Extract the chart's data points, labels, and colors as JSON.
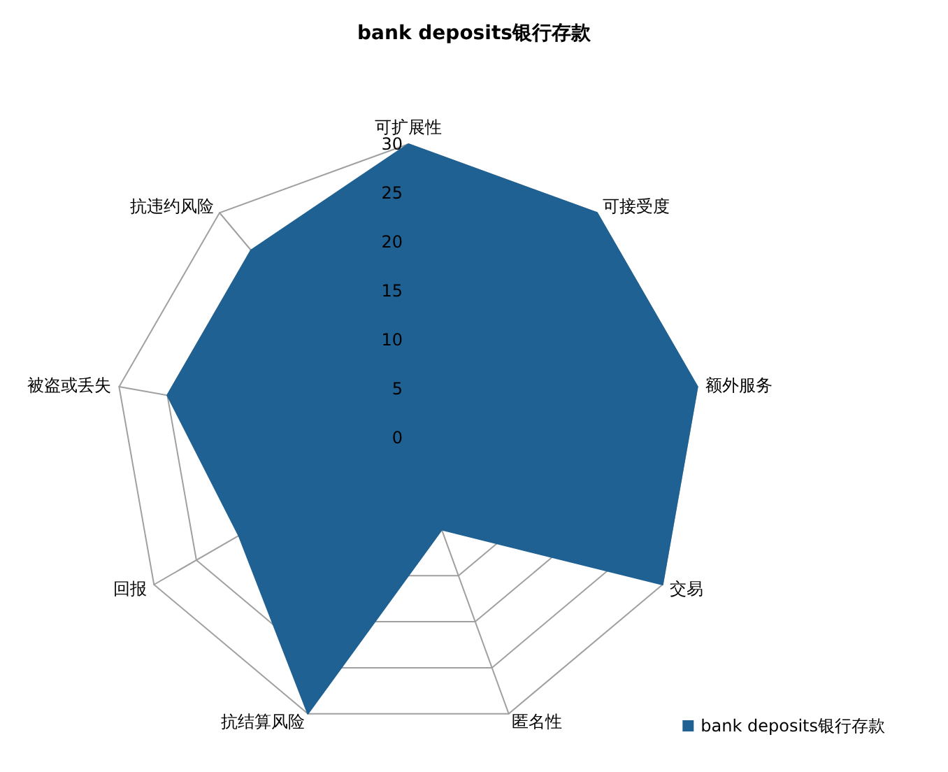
{
  "chart_data": {
    "type": "radar",
    "title": "bank deposits银行存款",
    "categories": [
      "可扩展性",
      "可接受度",
      "额外服务",
      "交易",
      "匿名性",
      "抗结算风险",
      "回报",
      "被盗或丢失",
      "抗违约风险"
    ],
    "series": [
      {
        "name": "bank deposits银行存款",
        "color": "#1f6193",
        "values": [
          30,
          30,
          30,
          30,
          10,
          30,
          20,
          25,
          25
        ]
      }
    ],
    "ylim": [
      0,
      30
    ],
    "yticks": [
      0,
      5,
      10,
      15,
      20,
      25,
      30
    ],
    "grid": true,
    "legend": "bottom right",
    "marker": "none"
  }
}
